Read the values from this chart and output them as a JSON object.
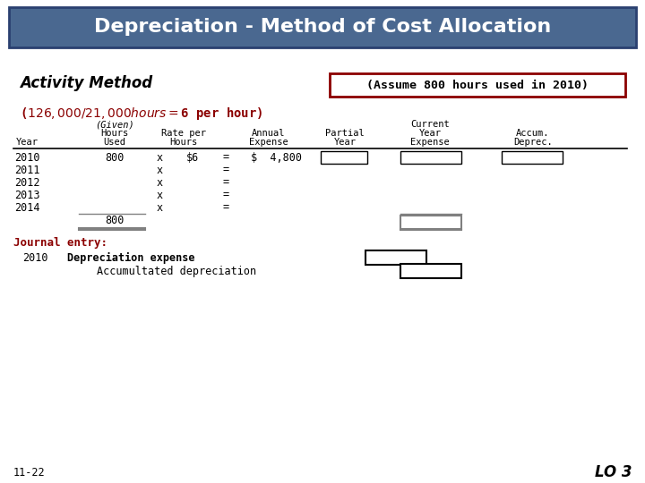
{
  "title": "Depreciation - Method of Cost Allocation",
  "title_bg": "#4a6890",
  "title_fg": "white",
  "subtitle": "Activity Method",
  "assumption_box": "(Assume 800 hours used in 2010)",
  "formula_line": "($126,000 / 21,000 hours = $6 per hour)",
  "total_hours": "800",
  "journal_label": "Journal entry:",
  "journal_year": "2010",
  "journal_debit": "Depreciation expense",
  "journal_credit": "Accumultated depreciation",
  "footer_left": "11-22",
  "footer_right": "LO 3",
  "bg_color": "white",
  "dark_red": "#8B0000",
  "header_box_bg": "#4a6890"
}
